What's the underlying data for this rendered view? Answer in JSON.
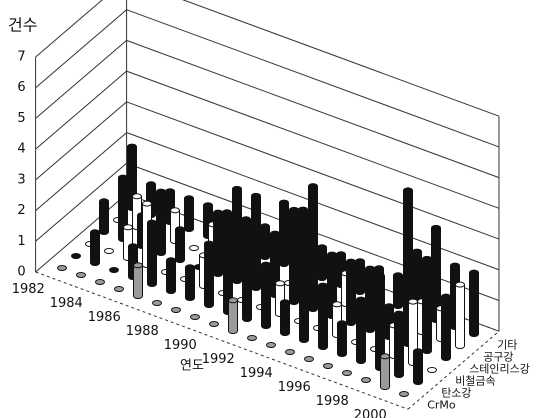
{
  "chart_data": {
    "type": "bar3d",
    "y_label": "건수",
    "x_label": "연도",
    "categories": [
      "1982",
      null,
      "1984",
      null,
      "1986",
      null,
      "1988",
      null,
      "1990",
      null,
      "1992",
      null,
      "1994",
      null,
      "1996",
      null,
      "1998",
      null,
      "2000"
    ],
    "ylim": [
      0,
      7
    ],
    "yticks": [
      0,
      1,
      2,
      3,
      4,
      5,
      6,
      7
    ],
    "series": [
      {
        "name": "CrMo",
        "color": "#9a9a9a",
        "values": [
          0,
          0,
          0,
          0,
          1,
          0,
          0,
          0,
          0,
          1,
          0,
          0,
          0,
          0,
          0,
          0,
          0,
          1,
          0
        ]
      },
      {
        "name": "탄소강",
        "color": "#111111",
        "values": [
          0,
          1,
          0,
          1,
          2,
          1,
          1,
          2,
          3,
          3,
          2,
          1,
          3,
          2,
          1,
          2,
          3,
          2,
          1
        ]
      },
      {
        "name": "비철금속",
        "color": "#ffffff",
        "values": [
          0,
          0,
          1,
          2,
          0,
          0,
          1,
          0,
          0,
          0,
          1,
          0,
          0,
          1,
          0,
          0,
          1,
          2,
          0
        ]
      },
      {
        "name": "스테인리스강",
        "color": "#111111",
        "values": [
          1,
          2,
          1,
          2,
          1,
          0,
          2,
          3,
          3,
          2,
          3,
          4,
          2,
          2,
          2,
          1,
          5,
          3,
          2
        ]
      },
      {
        "name": "공구강",
        "color": "#ffffff",
        "values": [
          0,
          1,
          0,
          1,
          0,
          1,
          0,
          1,
          0,
          0,
          0,
          0,
          1,
          0,
          0,
          0,
          1,
          1,
          2
        ]
      },
      {
        "name": "기타",
        "color": "#111111",
        "values": [
          2,
          1,
          1,
          1,
          1,
          1,
          1,
          1,
          2,
          2,
          1,
          1,
          1,
          1,
          1,
          2,
          3,
          2,
          2
        ]
      }
    ]
  }
}
